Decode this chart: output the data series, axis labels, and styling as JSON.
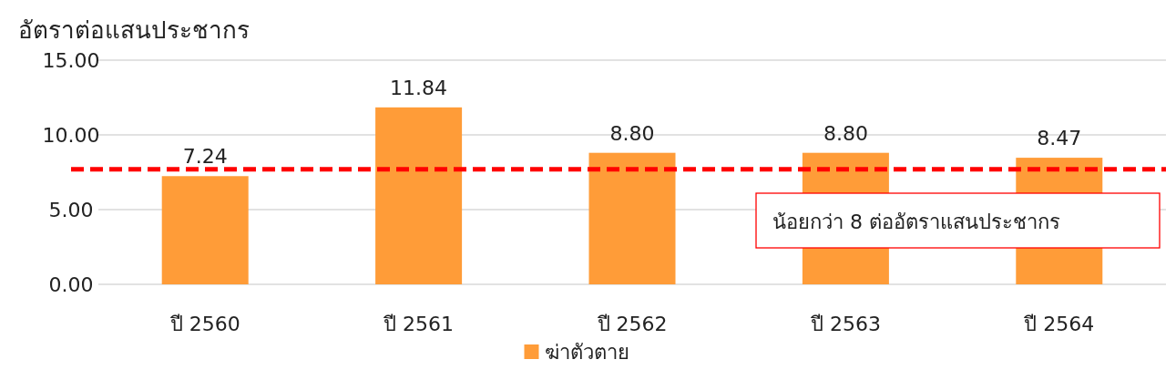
{
  "chart_data": {
    "type": "bar",
    "ylabel": "อัตราต่อแสนประชากร",
    "categories": [
      "ปี 2560",
      "ปี 2561",
      "ปี 2562",
      "ปี 2563",
      "ปี 2564"
    ],
    "series": [
      {
        "name": "ฆ่าตัวตาย",
        "color": "#ff9c38",
        "values": [
          7.24,
          11.84,
          8.8,
          8.8,
          8.47
        ],
        "value_labels": [
          "7.24",
          "11.84",
          "8.80",
          "8.80",
          "8.47"
        ]
      }
    ],
    "ylim": [
      0,
      15
    ],
    "yticks": [
      {
        "value": 0,
        "label": "0.00"
      },
      {
        "value": 5,
        "label": "5.00"
      },
      {
        "value": 10,
        "label": "10.00"
      },
      {
        "value": 15,
        "label": "15.00"
      }
    ],
    "grid": "y",
    "legend": "bottom",
    "ref_lines": [
      {
        "axis": "y",
        "value": 7.7,
        "label": "น้อยกว่า 8 ต่ออัตราแสนประชากร",
        "color": "#ff0000",
        "line_style": "dashed"
      }
    ]
  }
}
